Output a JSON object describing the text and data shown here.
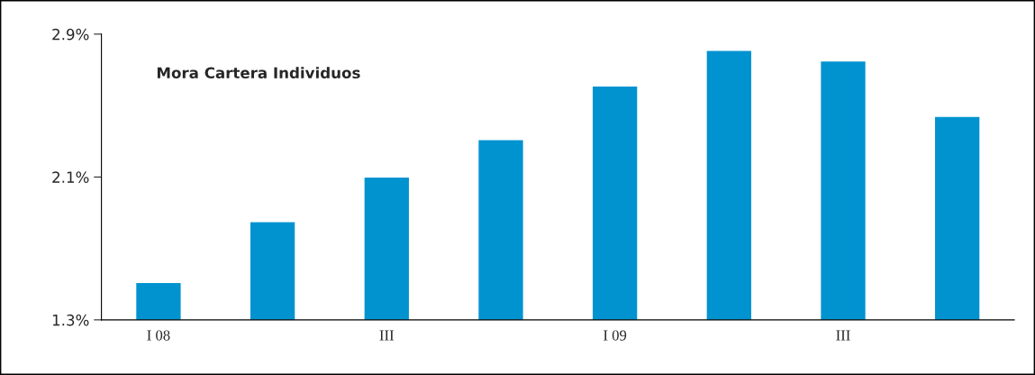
{
  "chart_data": {
    "type": "bar",
    "title": "Mora Cartera Individuos",
    "categories": [
      "I 08",
      null,
      "III",
      null,
      "I 09",
      null,
      "III",
      null
    ],
    "values": [
      1.51,
      1.85,
      2.1,
      2.31,
      2.61,
      2.81,
      2.75,
      2.44
    ],
    "color": "#0093d0",
    "ylim": [
      1.3,
      2.9
    ],
    "yticks": [
      {
        "value": 1.3,
        "label": "1.3%"
      },
      {
        "value": 2.1,
        "label": "2.1%"
      },
      {
        "value": 2.9,
        "label": "2.9%"
      }
    ],
    "grid": false,
    "legend": false
  }
}
